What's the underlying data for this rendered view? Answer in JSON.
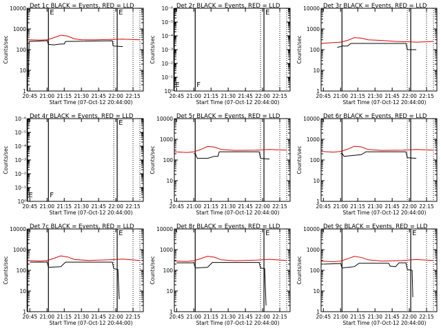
{
  "window": {
    "background": "#ffffff"
  },
  "colors": {
    "events": "#000000",
    "lld": "#dd0000",
    "axes": "#000000"
  },
  "chart_data": [
    {
      "type": "line",
      "title": "Det 1c BLACK = Events, RED = LLD",
      "xlabel": "Start Time (07-Oct-12 20:44:00)",
      "ylabel": "Counts/sec",
      "xticks": [
        "20:45",
        "21:00",
        "21:15",
        "21:30",
        "21:45",
        "22:00",
        "22:15"
      ],
      "yscale": "log",
      "yticks": [
        "1",
        "10",
        "100",
        "1000",
        "10000"
      ],
      "markers": [
        {
          "label": "",
          "t": 20.71
        },
        {
          "label": "E",
          "t": 21.02
        },
        {
          "label": "E",
          "t": 22.02
        }
      ],
      "events": [
        {
          "x": 20.73,
          "y": 5
        },
        {
          "x": 20.74,
          "y": 250
        },
        {
          "x": 20.98,
          "y": 270
        },
        {
          "x": 21.0,
          "y": 280
        },
        {
          "x": 21.02,
          "y": 180
        },
        {
          "x": 21.1,
          "y": 170
        },
        {
          "x": 21.18,
          "y": 185
        },
        {
          "x": 21.25,
          "y": 190
        },
        {
          "x": 21.27,
          "y": 250
        },
        {
          "x": 21.55,
          "y": 255
        },
        {
          "x": 21.57,
          "y": 260
        },
        {
          "x": 21.95,
          "y": 270
        },
        {
          "x": 21.96,
          "y": 150
        },
        {
          "x": 22.1,
          "y": 140
        }
      ],
      "lld": [
        {
          "x": 20.72,
          "y": 300
        },
        {
          "x": 20.9,
          "y": 290
        },
        {
          "x": 21.0,
          "y": 300
        },
        {
          "x": 21.1,
          "y": 380
        },
        {
          "x": 21.2,
          "y": 500
        },
        {
          "x": 21.3,
          "y": 450
        },
        {
          "x": 21.4,
          "y": 330
        },
        {
          "x": 21.5,
          "y": 300
        },
        {
          "x": 21.7,
          "y": 300
        },
        {
          "x": 21.9,
          "y": 310
        },
        {
          "x": 22.1,
          "y": 320
        },
        {
          "x": 22.35,
          "y": 300
        }
      ]
    },
    {
      "type": "line",
      "title": "Det 2r BLACK = Events, RED = LLD",
      "xlabel": "Start Time (07-Oct-12 20:44:00)",
      "ylabel": "Counts/sec",
      "xticks": [
        "20:45",
        "21:00",
        "21:15",
        "21:30",
        "21:45",
        "22:00",
        "22:15"
      ],
      "yscale": "log",
      "yticks": [
        "10⁰",
        "10⁻¹",
        "10⁻²",
        "10⁻³",
        "10⁻⁴",
        "10⁻⁵",
        "10⁻⁶"
      ],
      "markers": [
        {
          "label": "E",
          "t": 20.71
        },
        {
          "label": "F",
          "t": 21.02
        },
        {
          "label": "E",
          "t": 22.02
        }
      ],
      "events": [],
      "lld": []
    },
    {
      "type": "line",
      "title": "Det 3r BLACK = Events, RED = LLD",
      "xlabel": "Start Time (07-Oct-12 20:44:00)",
      "ylabel": "Counts/sec",
      "xticks": [
        "20:45",
        "21:00",
        "21:15",
        "21:30",
        "21:45",
        "22:00",
        "22:15"
      ],
      "yscale": "log",
      "yticks": [
        "1",
        "10",
        "100",
        "1000",
        "10000"
      ],
      "markers": [
        {
          "label": "",
          "t": 21.02
        },
        {
          "label": "",
          "t": 22.02
        }
      ],
      "events": [
        {
          "x": 20.95,
          "y": 130
        },
        {
          "x": 21.0,
          "y": 140
        },
        {
          "x": 21.02,
          "y": 150
        },
        {
          "x": 21.1,
          "y": 150
        },
        {
          "x": 21.15,
          "y": 200
        },
        {
          "x": 21.55,
          "y": 200
        },
        {
          "x": 21.6,
          "y": 200
        },
        {
          "x": 21.95,
          "y": 200
        },
        {
          "x": 21.97,
          "y": 100
        },
        {
          "x": 22.1,
          "y": 100
        }
      ],
      "lld": [
        {
          "x": 20.72,
          "y": 200
        },
        {
          "x": 20.9,
          "y": 220
        },
        {
          "x": 21.0,
          "y": 230
        },
        {
          "x": 21.1,
          "y": 280
        },
        {
          "x": 21.2,
          "y": 380
        },
        {
          "x": 21.3,
          "y": 360
        },
        {
          "x": 21.4,
          "y": 300
        },
        {
          "x": 21.6,
          "y": 280
        },
        {
          "x": 21.8,
          "y": 250
        },
        {
          "x": 22.0,
          "y": 240
        },
        {
          "x": 22.1,
          "y": 230
        },
        {
          "x": 22.35,
          "y": 250
        }
      ]
    },
    {
      "type": "line",
      "title": "Det 4r BLACK = Events, RED = LLD",
      "xlabel": "Start Time (07-Oct-12 20:44:00)",
      "ylabel": "Counts/sec",
      "xticks": [
        "20:45",
        "21:00",
        "21:15",
        "21:30",
        "21:45",
        "22:00",
        "22:15"
      ],
      "yscale": "log",
      "yticks": [
        "10⁰",
        "10⁻¹",
        "10⁻²",
        "10⁻³",
        "10⁻⁴",
        "10⁻⁵",
        "10⁻⁶"
      ],
      "markers": [
        {
          "label": "E",
          "t": 20.71
        },
        {
          "label": "F",
          "t": 21.02
        },
        {
          "label": "E",
          "t": 22.02
        }
      ],
      "events": [],
      "lld": []
    },
    {
      "type": "line",
      "title": "Det 5r BLACK = Events, RED = LLD",
      "xlabel": "Start Time (07-Oct-12 20:44:00)",
      "ylabel": "Counts/sec",
      "xticks": [
        "20:45",
        "21:00",
        "21:15",
        "21:30",
        "21:45",
        "22:00",
        "22:15"
      ],
      "yscale": "log",
      "yticks": [
        "1",
        "10",
        "100",
        "1000",
        "10000"
      ],
      "markers": [
        {
          "label": "",
          "t": 21.02
        },
        {
          "label": "",
          "t": 22.02
        }
      ],
      "events": [
        {
          "x": 21.0,
          "y": 200
        },
        {
          "x": 21.02,
          "y": 210
        },
        {
          "x": 21.05,
          "y": 120
        },
        {
          "x": 21.2,
          "y": 120
        },
        {
          "x": 21.3,
          "y": 150
        },
        {
          "x": 21.35,
          "y": 150
        },
        {
          "x": 21.37,
          "y": 250
        },
        {
          "x": 21.95,
          "y": 250
        },
        {
          "x": 21.97,
          "y": 120
        },
        {
          "x": 22.1,
          "y": 110
        }
      ],
      "lld": [
        {
          "x": 20.72,
          "y": 250
        },
        {
          "x": 20.9,
          "y": 230
        },
        {
          "x": 21.0,
          "y": 250
        },
        {
          "x": 21.1,
          "y": 320
        },
        {
          "x": 21.2,
          "y": 450
        },
        {
          "x": 21.3,
          "y": 420
        },
        {
          "x": 21.4,
          "y": 320
        },
        {
          "x": 21.6,
          "y": 290
        },
        {
          "x": 21.9,
          "y": 300
        },
        {
          "x": 22.1,
          "y": 320
        },
        {
          "x": 22.35,
          "y": 300
        }
      ]
    },
    {
      "type": "line",
      "title": "Det 6r BLACK = Events, RED = LLD",
      "xlabel": "Start Time (07-Oct-12 20:44:00)",
      "ylabel": "Counts/sec",
      "xticks": [
        "20:45",
        "21:00",
        "21:15",
        "21:30",
        "21:45",
        "22:00",
        "22:15"
      ],
      "yscale": "log",
      "yticks": [
        "1",
        "10",
        "100",
        "1000",
        "10000"
      ],
      "markers": [
        {
          "label": "",
          "t": 21.02
        },
        {
          "label": "",
          "t": 22.02
        }
      ],
      "events": [
        {
          "x": 21.0,
          "y": 200
        },
        {
          "x": 21.02,
          "y": 210
        },
        {
          "x": 21.05,
          "y": 150
        },
        {
          "x": 21.3,
          "y": 180
        },
        {
          "x": 21.37,
          "y": 250
        },
        {
          "x": 21.95,
          "y": 250
        },
        {
          "x": 21.97,
          "y": 130
        },
        {
          "x": 22.1,
          "y": 120
        }
      ],
      "lld": [
        {
          "x": 20.72,
          "y": 260
        },
        {
          "x": 20.9,
          "y": 240
        },
        {
          "x": 21.0,
          "y": 260
        },
        {
          "x": 21.1,
          "y": 330
        },
        {
          "x": 21.2,
          "y": 460
        },
        {
          "x": 21.3,
          "y": 430
        },
        {
          "x": 21.4,
          "y": 320
        },
        {
          "x": 21.6,
          "y": 290
        },
        {
          "x": 21.9,
          "y": 300
        },
        {
          "x": 22.1,
          "y": 320
        },
        {
          "x": 22.35,
          "y": 300
        }
      ]
    },
    {
      "type": "line",
      "title": "Det 7c BLACK = Events, RED = LLD",
      "xlabel": "Start Time (07-Oct-12 20:44:00)",
      "ylabel": "Counts/sec",
      "xticks": [
        "20:45",
        "21:00",
        "21:15",
        "21:30",
        "21:45",
        "22:00",
        "22:15"
      ],
      "yscale": "log",
      "yticks": [
        "1",
        "10",
        "100",
        "1000",
        "10000"
      ],
      "markers": [
        {
          "label": "",
          "t": 20.71
        },
        {
          "label": "",
          "t": 21.02
        },
        {
          "label": "E",
          "t": 22.02
        }
      ],
      "events": [
        {
          "x": 20.75,
          "y": 250
        },
        {
          "x": 20.98,
          "y": 250
        },
        {
          "x": 21.0,
          "y": 260
        },
        {
          "x": 21.02,
          "y": 140
        },
        {
          "x": 21.2,
          "y": 150
        },
        {
          "x": 21.27,
          "y": 250
        },
        {
          "x": 21.95,
          "y": 250
        },
        {
          "x": 21.97,
          "y": 120
        },
        {
          "x": 22.03,
          "y": 110
        },
        {
          "x": 22.05,
          "y": 4
        }
      ],
      "lld": [
        {
          "x": 20.72,
          "y": 300
        },
        {
          "x": 20.9,
          "y": 280
        },
        {
          "x": 21.0,
          "y": 300
        },
        {
          "x": 21.1,
          "y": 380
        },
        {
          "x": 21.2,
          "y": 500
        },
        {
          "x": 21.3,
          "y": 440
        },
        {
          "x": 21.4,
          "y": 330
        },
        {
          "x": 21.6,
          "y": 300
        },
        {
          "x": 21.9,
          "y": 320
        },
        {
          "x": 22.1,
          "y": 350
        },
        {
          "x": 22.35,
          "y": 300
        }
      ]
    },
    {
      "type": "line",
      "title": "Det 8r BLACK = Events, RED = LLD",
      "xlabel": "Start Time (07-Oct-12 20:44:00)",
      "ylabel": "Counts/sec",
      "xticks": [
        "20:45",
        "21:00",
        "21:15",
        "21:30",
        "21:45",
        "22:00",
        "22:15"
      ],
      "yscale": "log",
      "yticks": [
        "1",
        "10",
        "100",
        "1000",
        "10000"
      ],
      "markers": [
        {
          "label": "",
          "t": 21.02
        },
        {
          "label": "E",
          "t": 22.02
        }
      ],
      "events": [
        {
          "x": 20.75,
          "y": 230
        },
        {
          "x": 20.98,
          "y": 230
        },
        {
          "x": 21.0,
          "y": 240
        },
        {
          "x": 21.02,
          "y": 130
        },
        {
          "x": 21.2,
          "y": 140
        },
        {
          "x": 21.27,
          "y": 240
        },
        {
          "x": 21.95,
          "y": 240
        },
        {
          "x": 21.97,
          "y": 130
        },
        {
          "x": 22.03,
          "y": 120
        },
        {
          "x": 22.05,
          "y": 2
        }
      ],
      "lld": [
        {
          "x": 20.72,
          "y": 280
        },
        {
          "x": 20.9,
          "y": 270
        },
        {
          "x": 21.0,
          "y": 290
        },
        {
          "x": 21.1,
          "y": 370
        },
        {
          "x": 21.2,
          "y": 480
        },
        {
          "x": 21.3,
          "y": 430
        },
        {
          "x": 21.4,
          "y": 320
        },
        {
          "x": 21.6,
          "y": 290
        },
        {
          "x": 21.9,
          "y": 310
        },
        {
          "x": 22.1,
          "y": 340
        },
        {
          "x": 22.35,
          "y": 300
        }
      ]
    },
    {
      "type": "line",
      "title": "Det 9c BLACK = Events, RED = LLD",
      "xlabel": "Start Time (07-Oct-12 20:44:00)",
      "ylabel": "Counts/sec",
      "xticks": [
        "20:45",
        "21:00",
        "21:15",
        "21:30",
        "21:45",
        "22:00",
        "22:15"
      ],
      "yscale": "log",
      "yticks": [
        "1",
        "10",
        "100",
        "1000",
        "10000"
      ],
      "markers": [
        {
          "label": "",
          "t": 21.02
        },
        {
          "label": "E",
          "t": 22.02
        }
      ],
      "events": [
        {
          "x": 20.75,
          "y": 200
        },
        {
          "x": 20.98,
          "y": 210
        },
        {
          "x": 21.0,
          "y": 220
        },
        {
          "x": 21.02,
          "y": 130
        },
        {
          "x": 21.2,
          "y": 150
        },
        {
          "x": 21.27,
          "y": 220
        },
        {
          "x": 21.7,
          "y": 220
        },
        {
          "x": 21.72,
          "y": 160
        },
        {
          "x": 21.8,
          "y": 150
        },
        {
          "x": 21.85,
          "y": 230
        },
        {
          "x": 21.95,
          "y": 230
        },
        {
          "x": 21.97,
          "y": 110
        },
        {
          "x": 22.04,
          "y": 100
        },
        {
          "x": 22.05,
          "y": 5
        }
      ],
      "lld": [
        {
          "x": 20.72,
          "y": 280
        },
        {
          "x": 20.9,
          "y": 260
        },
        {
          "x": 21.0,
          "y": 280
        },
        {
          "x": 21.1,
          "y": 360
        },
        {
          "x": 21.2,
          "y": 470
        },
        {
          "x": 21.3,
          "y": 420
        },
        {
          "x": 21.4,
          "y": 320
        },
        {
          "x": 21.6,
          "y": 280
        },
        {
          "x": 21.9,
          "y": 300
        },
        {
          "x": 22.1,
          "y": 330
        },
        {
          "x": 22.35,
          "y": 300
        }
      ]
    }
  ]
}
